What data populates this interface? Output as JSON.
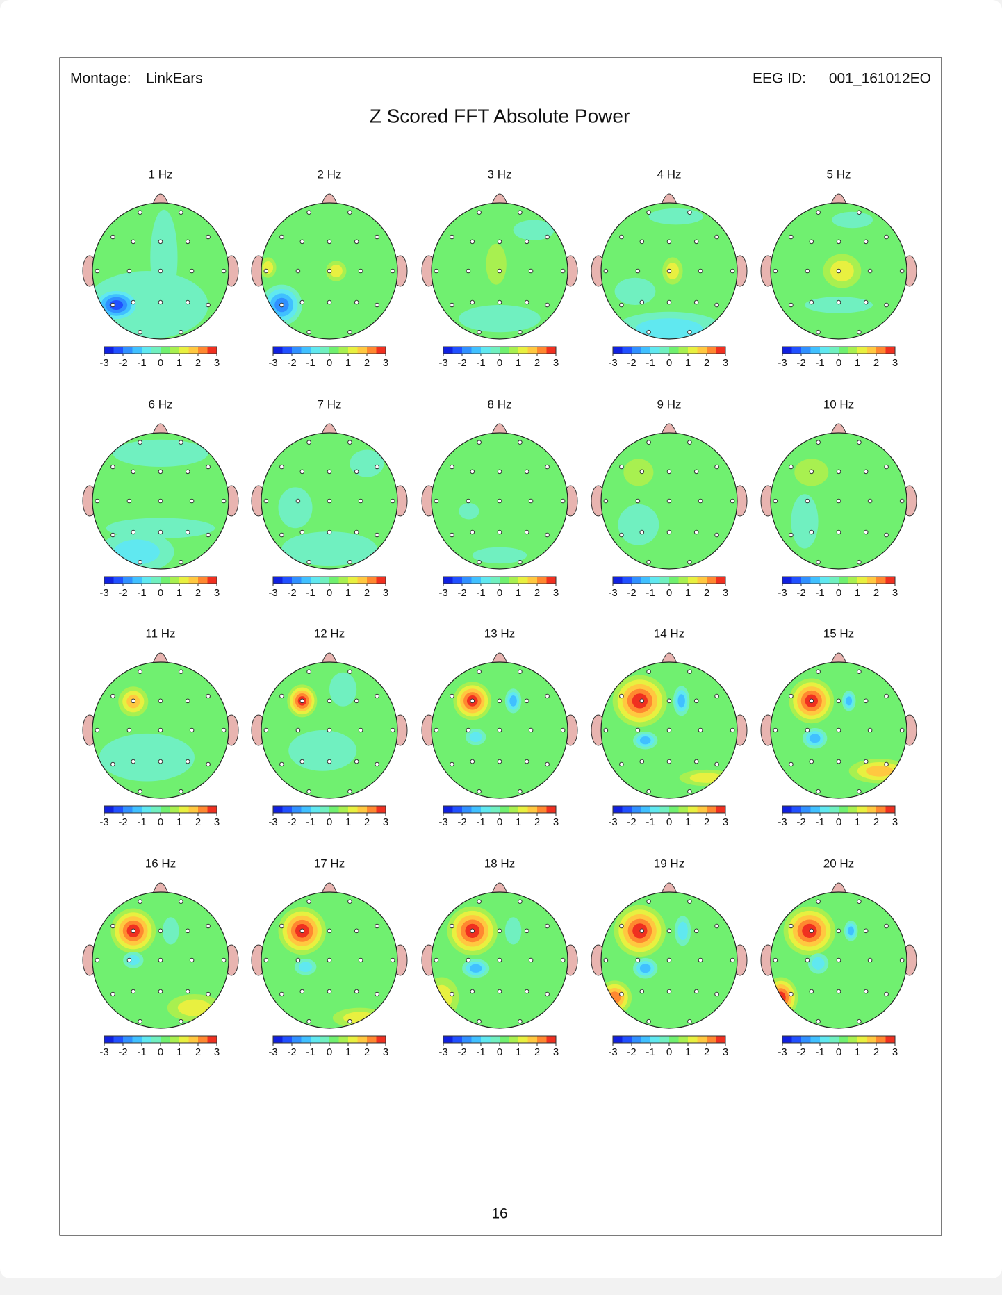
{
  "header": {
    "montage_label": "Montage:",
    "montage": "LinkEars",
    "eeg_id_label": "EEG ID:",
    "eeg_id": "001_161012EO"
  },
  "title": "Z Scored FFT Absolute Power",
  "maps": [
    {
      "label": "1 Hz"
    },
    {
      "label": "2 Hz"
    },
    {
      "label": "3 Hz"
    },
    {
      "label": "4 Hz"
    },
    {
      "label": "5 Hz"
    },
    {
      "label": "6 Hz"
    },
    {
      "label": "7 Hz"
    },
    {
      "label": "8 Hz"
    },
    {
      "label": "9 Hz"
    },
    {
      "label": "10 Hz"
    },
    {
      "label": "11 Hz"
    },
    {
      "label": "12 Hz"
    },
    {
      "label": "13 Hz"
    },
    {
      "label": "14 Hz"
    },
    {
      "label": "15 Hz"
    },
    {
      "label": "16 Hz"
    },
    {
      "label": "17 Hz"
    },
    {
      "label": "18 Hz"
    },
    {
      "label": "19 Hz"
    },
    {
      "label": "20 Hz"
    }
  ],
  "colorbar_ticks": [
    -3,
    -2,
    -1,
    0,
    1,
    2,
    3
  ],
  "page_number": "16"
}
